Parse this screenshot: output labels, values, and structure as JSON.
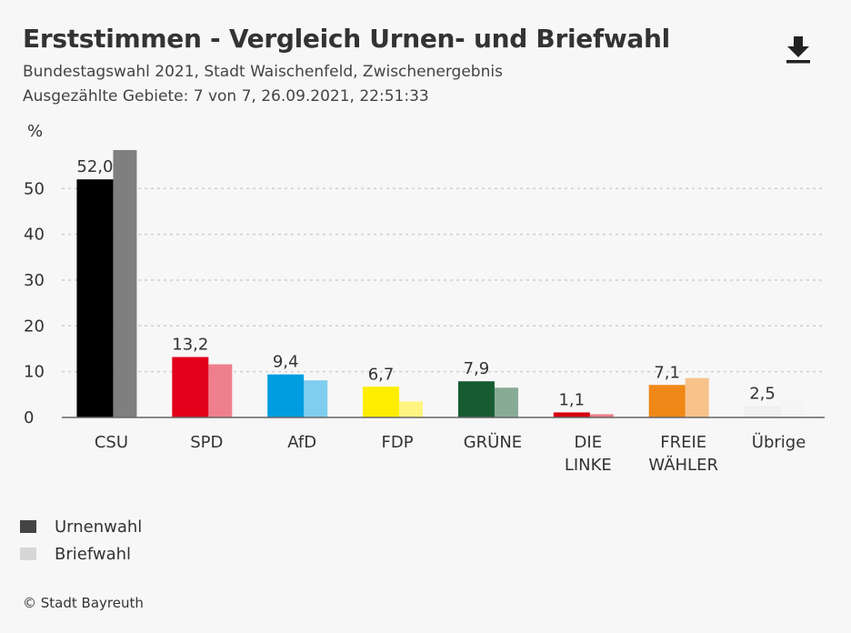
{
  "header": {
    "title": "Erststimmen - Vergleich Urnen- und Briefwahl",
    "subtitle_line1": "Bundestagswahl 2021, Stadt Waischenfeld, Zwischenergebnis",
    "subtitle_line2": "Ausgezählte Gebiete: 7 von 7, 26.09.2021, 22:51:33",
    "download_icon": "download-icon"
  },
  "legend": {
    "items": [
      {
        "label": "Urnenwahl",
        "color": "#444444"
      },
      {
        "label": "Briefwahl",
        "color": "#d6d6d6"
      }
    ]
  },
  "source": "© Stadt Bayreuth",
  "chart_data": {
    "type": "bar",
    "ylabel": "%",
    "ylim": [
      0,
      58
    ],
    "yticks": [
      0,
      10,
      20,
      30,
      40,
      50
    ],
    "grid": true,
    "legend_position": "bottom-left",
    "categories": [
      "CSU",
      "SPD",
      "AfD",
      "FDP",
      "GRÜNE",
      "DIE LINKE",
      "FREIE WÄHLER",
      "Übrige"
    ],
    "category_lines": [
      [
        "CSU"
      ],
      [
        "SPD"
      ],
      [
        "AfD"
      ],
      [
        "FDP"
      ],
      [
        "GRÜNE"
      ],
      [
        "DIE",
        "LINKE"
      ],
      [
        "FREIE",
        "WÄHLER"
      ],
      [
        "Übrige"
      ]
    ],
    "data_labels": [
      "52,0",
      "13,2",
      "9,4",
      "6,7",
      "7,9",
      "1,1",
      "7,1",
      "2,5"
    ],
    "series": [
      {
        "name": "Urnenwahl",
        "values": [
          52.0,
          13.2,
          9.4,
          6.7,
          7.9,
          1.1,
          7.1,
          2.5
        ],
        "colors": [
          "#000000",
          "#e3001b",
          "#009ee0",
          "#ffed00",
          "#165c32",
          "#d7000f",
          "#ef8817",
          "#f0f0f0"
        ]
      },
      {
        "name": "Briefwahl",
        "values": [
          58.4,
          11.6,
          8.1,
          3.5,
          6.5,
          0.7,
          8.6,
          3.7
        ],
        "colors": [
          "#7f7f7f",
          "#ef7f8d",
          "#7fcdef",
          "#fff47f",
          "#88ab96",
          "#eb7f87",
          "#f7c38b",
          "#f5f5f5"
        ]
      }
    ]
  }
}
